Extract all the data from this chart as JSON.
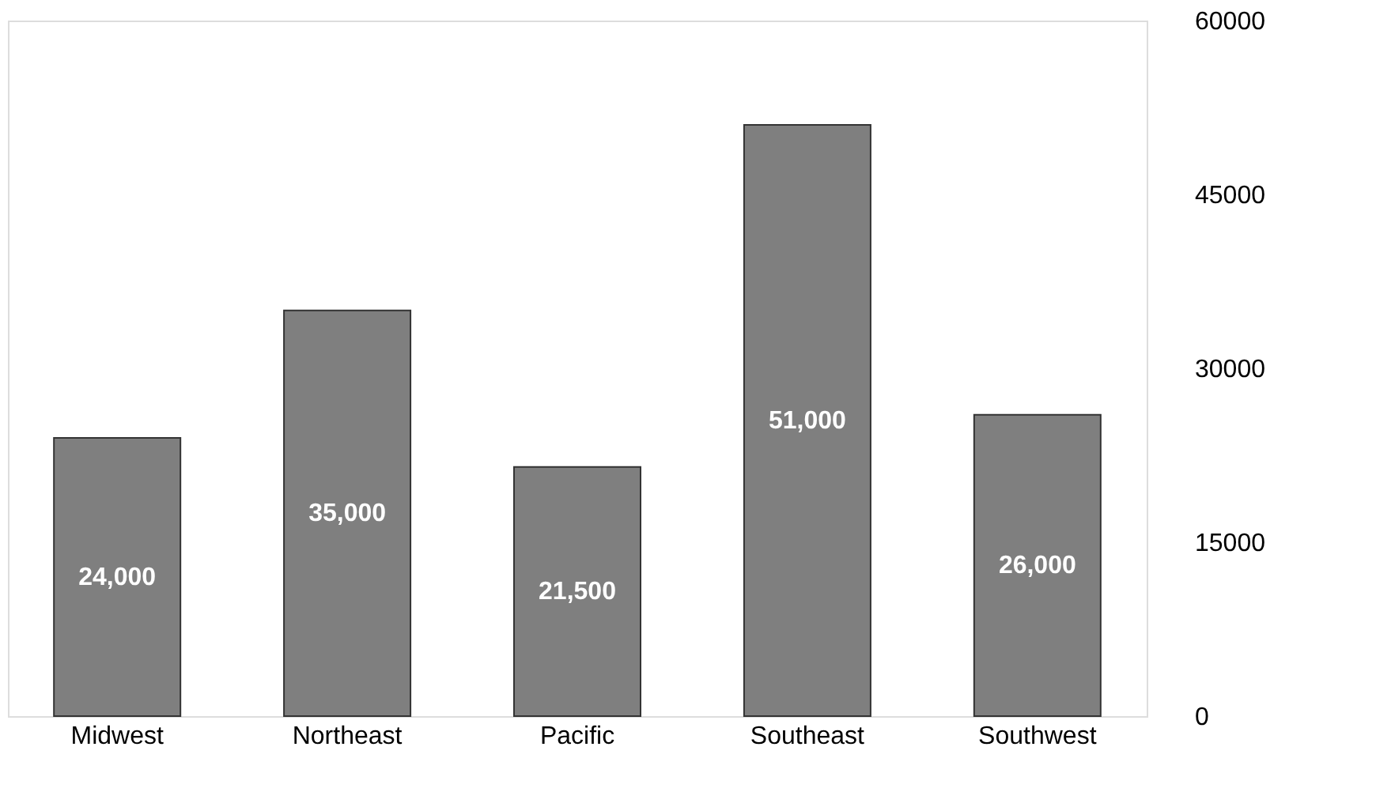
{
  "chart_data": {
    "type": "bar",
    "categories": [
      "Midwest",
      "Northeast",
      "Pacific",
      "Southeast",
      "Southwest"
    ],
    "values": [
      24000,
      35000,
      21500,
      51000,
      26000
    ],
    "value_labels": [
      "24,000",
      "35,000",
      "21,500",
      "51,000",
      "26,000"
    ],
    "color": "#7f7f7f",
    "ylim": [
      0,
      60000
    ],
    "yticks": [
      0,
      15000,
      30000,
      45000,
      60000
    ],
    "grid": false
  }
}
